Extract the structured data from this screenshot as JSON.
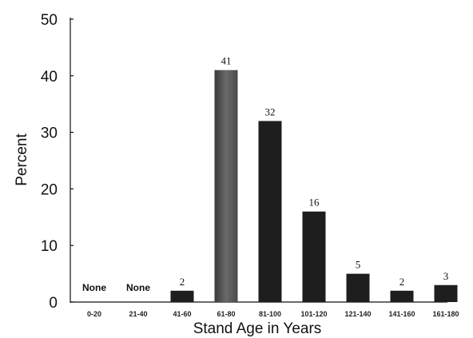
{
  "chart_data": {
    "type": "bar",
    "title": "",
    "xlabel": "Stand Age in Years",
    "ylabel": "Percent",
    "ylim": [
      0,
      50
    ],
    "yticks": [
      0,
      10,
      20,
      30,
      40,
      50
    ],
    "grid": false,
    "categories": [
      "0-20",
      "21-40",
      "41-60",
      "61-80",
      "81-100",
      "101-120",
      "121-140",
      "141-160",
      "161-180"
    ],
    "values": [
      0,
      0,
      2,
      41,
      32,
      16,
      5,
      2,
      3
    ],
    "data_labels": [
      "None",
      "None",
      "2",
      "41",
      "32",
      "16",
      "5",
      "2",
      "3"
    ],
    "colors": {
      "bar": "#1e1e1e",
      "highlight_bar": "#6a6a6a"
    }
  }
}
